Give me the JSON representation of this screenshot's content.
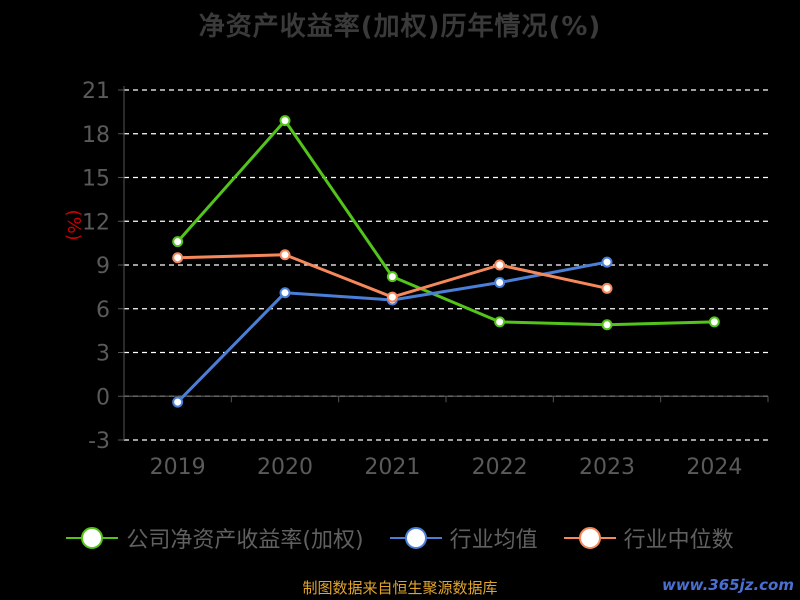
{
  "title": "净资产收益率(加权)历年情况(%)",
  "source_note": "制图数据来自恒生聚源数据库",
  "watermark": "www.365jz.com",
  "colors": {
    "grid": "#ffffff",
    "axis": "#555555",
    "tick_label": "#5a5a5a",
    "unit_label": "#cc0000"
  },
  "chart_data": {
    "type": "line",
    "title": "净资产收益率(加权)历年情况(%)",
    "ylabel": "(%)",
    "xlabel": "",
    "categories": [
      "2019",
      "2020",
      "2021",
      "2022",
      "2023",
      "2024"
    ],
    "ylim": [
      -3,
      21
    ],
    "yticks": [
      -3,
      0,
      3,
      6,
      9,
      12,
      15,
      18,
      21
    ],
    "grid": true,
    "legend_position": "bottom",
    "series": [
      {
        "name": "公司净资产收益率(加权)",
        "color": "#52c41a",
        "values": [
          10.6,
          18.9,
          8.2,
          5.1,
          4.9,
          5.1
        ]
      },
      {
        "name": "行业均值",
        "color": "#4a7fd8",
        "values": [
          -0.4,
          7.1,
          6.6,
          7.8,
          9.2,
          null
        ]
      },
      {
        "name": "行业中位数",
        "color": "#f5895c",
        "values": [
          9.5,
          9.7,
          6.8,
          9.0,
          7.4,
          null
        ]
      }
    ]
  }
}
